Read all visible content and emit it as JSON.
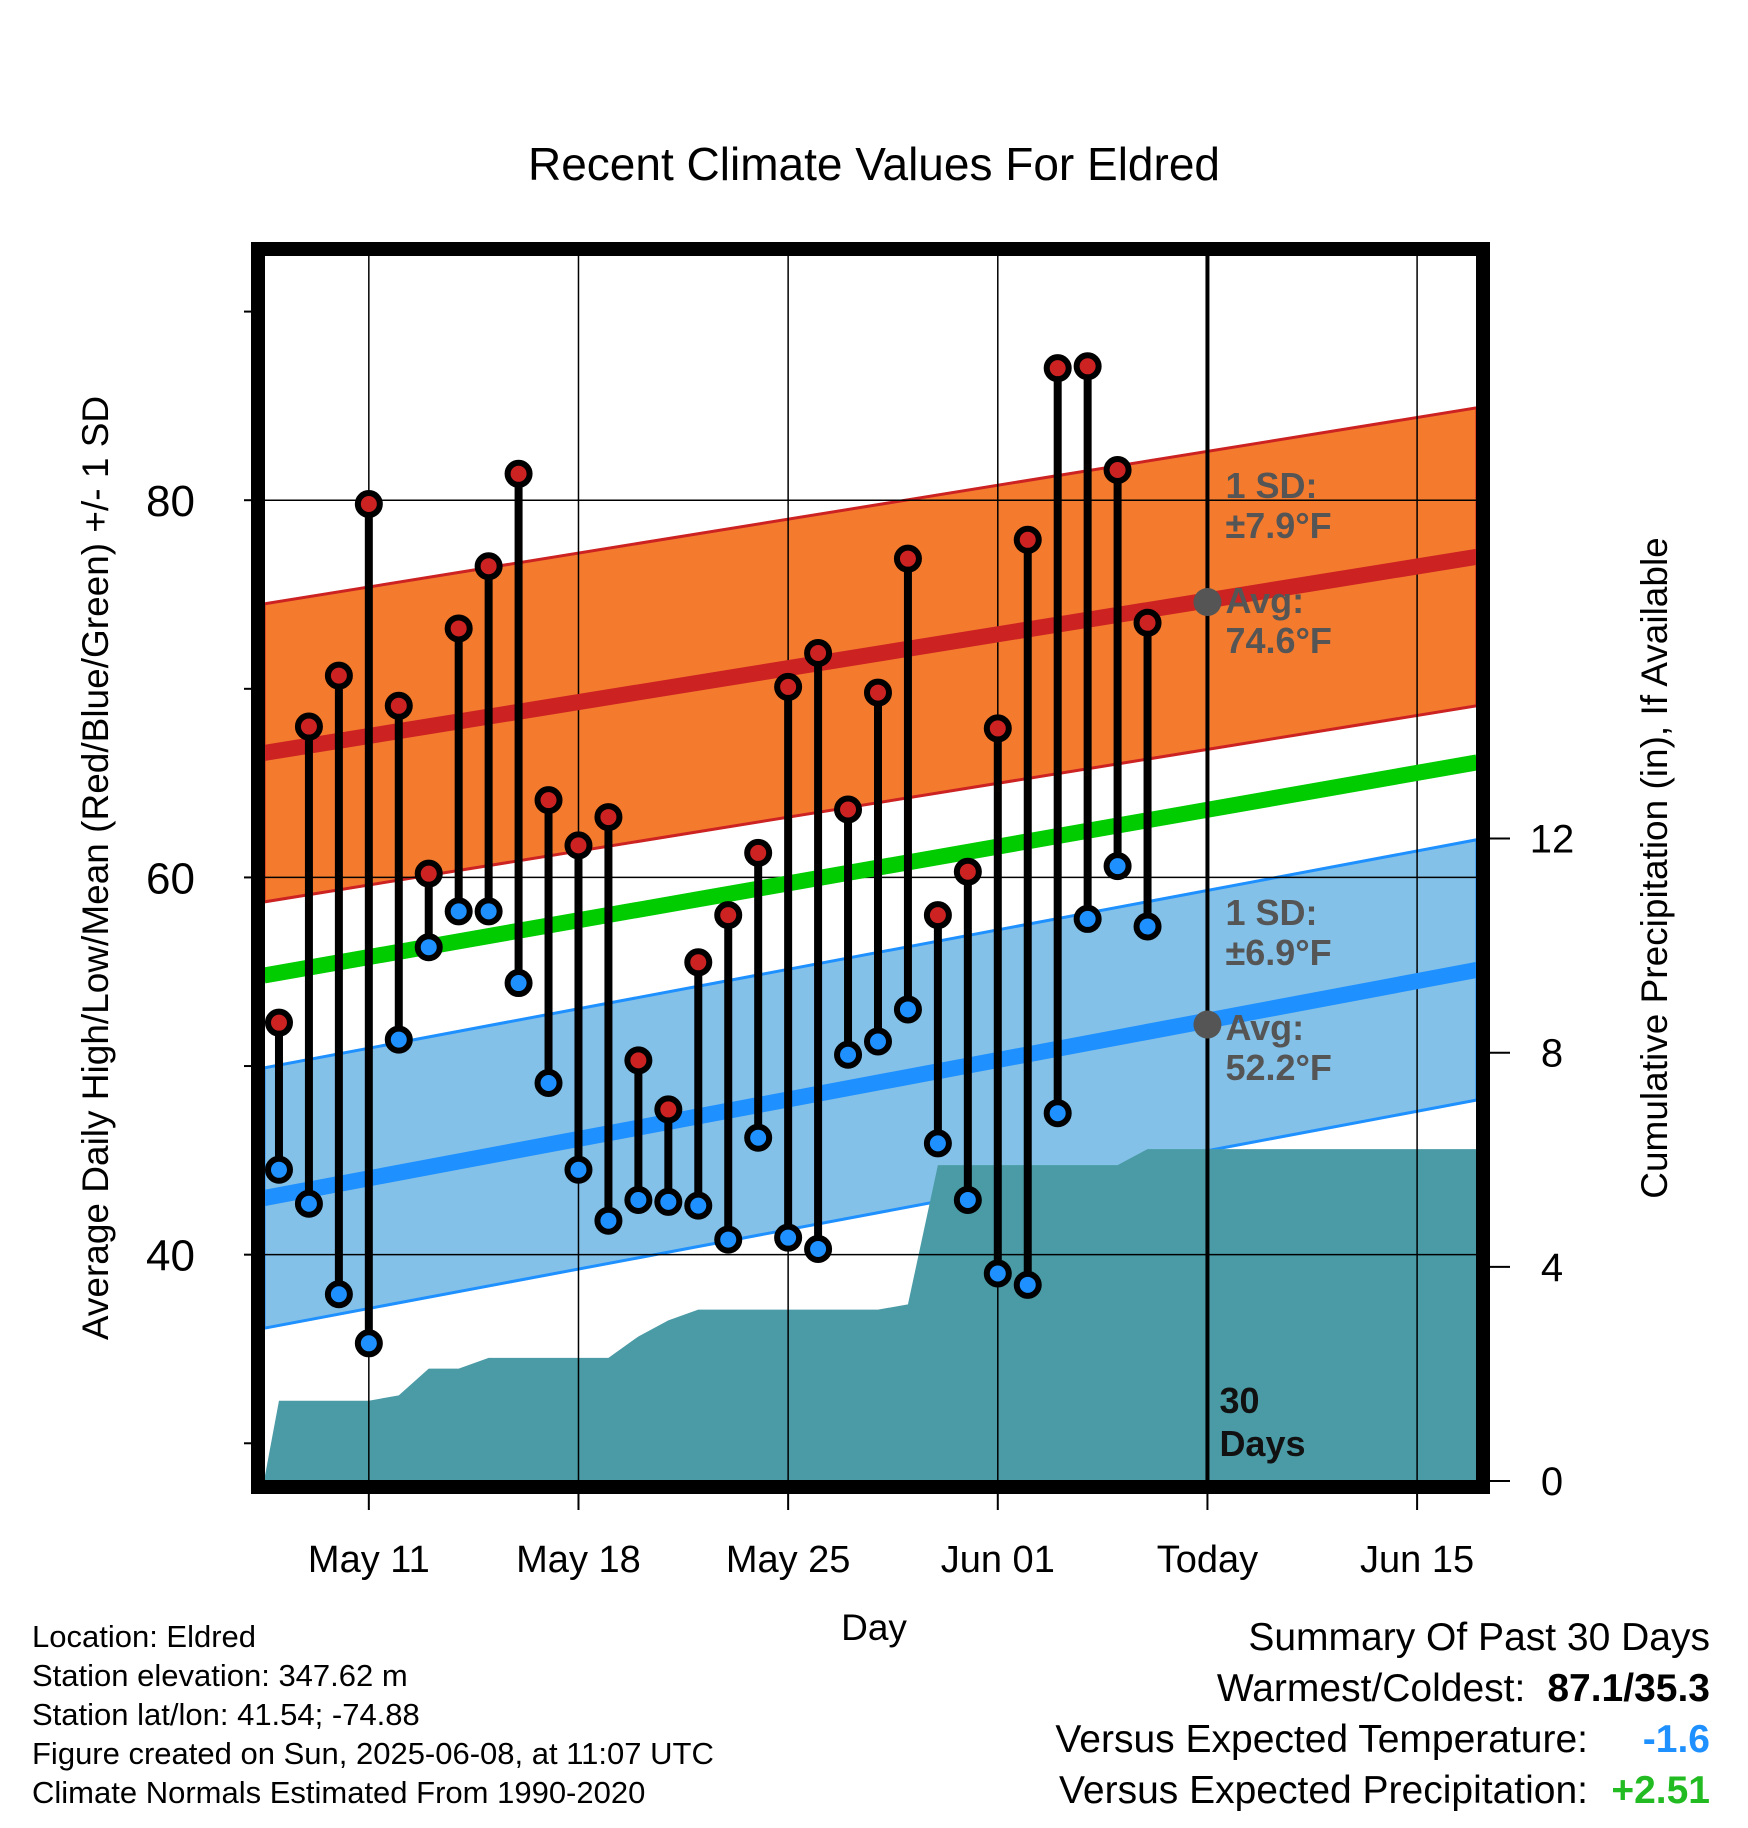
{
  "chart_data": {
    "type": "line",
    "title": "Recent Climate Values For Eldred",
    "xlabel": "Day",
    "ylabel": "Average Daily High/Low/Mean (Red/Blue/Green) +/- 1 SD",
    "y2label": "Cumulative Precipitation (in), If Available",
    "x_tick_labels": [
      "May 11",
      "May 18",
      "May 25",
      "Jun 01",
      "Today",
      "Jun 15"
    ],
    "x_tick_days": [
      3,
      10,
      17,
      24,
      31,
      38
    ],
    "xlim_days": [
      -0.5,
      40
    ],
    "x_day0": "May 8",
    "ylim": [
      28,
      93
    ],
    "y_ticks": [
      40,
      60,
      80
    ],
    "y2lim": [
      0,
      22.9
    ],
    "y2_ticks": [
      0,
      4,
      8,
      12
    ],
    "grid": true,
    "today_marker": {
      "day": 31,
      "label": "30 Days"
    },
    "normal_high": {
      "color": "#cc2222",
      "start": 66.6,
      "end": 77.0,
      "sd": 7.9,
      "band_color": "#f47b2e"
    },
    "normal_low": {
      "color": "#1e90ff",
      "start": 43.0,
      "end": 55.1,
      "sd": 6.9,
      "band_color": "#84c1e8"
    },
    "normal_mean": {
      "color": "#00cc00",
      "start": 54.8,
      "end": 66.1
    },
    "annotations": {
      "high_sd": [
        "1 SD:",
        "±7.9°F"
      ],
      "high_avg": [
        "Avg:",
        "74.6°F"
      ],
      "low_sd": [
        "1 SD:",
        "±6.9°F"
      ],
      "low_avg": [
        "Avg:",
        "52.2°F"
      ],
      "high_avg_value": 74.6,
      "low_avg_value": 52.2
    },
    "series": [
      {
        "name": "High",
        "color": "#cc2222",
        "values": [
          52.3,
          68.0,
          70.7,
          79.8,
          69.1,
          60.2,
          73.2,
          76.5,
          81.4,
          64.1,
          61.7,
          63.2,
          50.3,
          47.7,
          55.5,
          58.0,
          61.3,
          70.1,
          71.9,
          63.6,
          69.8,
          76.9,
          58.0,
          60.3,
          67.9,
          77.9,
          87.0,
          87.1,
          81.6,
          73.5
        ]
      },
      {
        "name": "Low",
        "color": "#1e90ff",
        "values": [
          44.5,
          42.7,
          37.9,
          35.3,
          51.4,
          56.3,
          58.2,
          58.2,
          54.4,
          49.1,
          44.5,
          41.8,
          42.9,
          42.8,
          42.6,
          40.8,
          46.2,
          40.9,
          40.3,
          50.6,
          51.3,
          53.0,
          45.9,
          42.9,
          39.0,
          38.4,
          47.5,
          57.8,
          60.6,
          57.4
        ]
      },
      {
        "name": "Cumulative Precipitation",
        "color": "#4a9ba6",
        "values": [
          1.5,
          1.5,
          1.5,
          1.5,
          1.6,
          2.1,
          2.1,
          2.3,
          2.3,
          2.3,
          2.3,
          2.3,
          2.7,
          3.0,
          3.2,
          3.2,
          3.2,
          3.2,
          3.2,
          3.2,
          3.2,
          3.3,
          5.9,
          5.9,
          5.9,
          5.9,
          5.9,
          5.9,
          5.9,
          6.2,
          6.2
        ]
      }
    ]
  },
  "info": {
    "location": "Location: Eldred",
    "elevation": "Station elevation: 347.62 m",
    "latlon": "Station lat/lon: 41.54; -74.88",
    "created": "Figure created on Sun, 2025-06-08, at 11:07 UTC",
    "normals": "Climate Normals Estimated From 1990-2020"
  },
  "summary": {
    "title": "Summary Of Past 30 Days",
    "warm_label": "Warmest/Coldest:",
    "warm_value": "87.1/35.3",
    "temp_label": "Versus Expected Temperature:",
    "temp_value": "-1.6",
    "temp_color": "#1e90ff",
    "precip_label": "Versus Expected Precipitation:",
    "precip_value": "+2.51",
    "precip_color": "#22bb22"
  }
}
